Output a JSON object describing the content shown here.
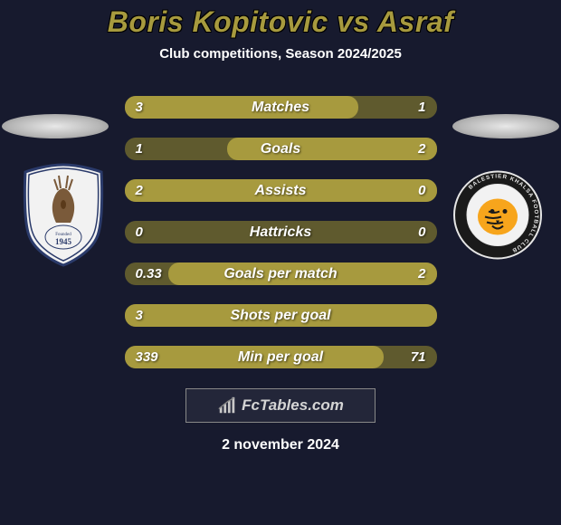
{
  "title": "Boris Kopitovic vs Asraf",
  "subtitle": "Club competitions, Season 2024/2025",
  "date": "2 november 2024",
  "watermark": "FcTables.com",
  "colors": {
    "background": "#171a2e",
    "accent": "#a79a3e",
    "bar_bg": "#5f5a2e",
    "text": "#ffffff"
  },
  "badge_left": {
    "year": "1945",
    "founded_text": "Founded"
  },
  "badge_right": {
    "outer_text": "BALESTIER KHALSA FOOTBALL CLUB"
  },
  "stats": [
    {
      "label": "Matches",
      "left_value": "3",
      "right_value": "1",
      "left_pct": 75,
      "right_pct": 0
    },
    {
      "label": "Goals",
      "left_value": "1",
      "right_value": "2",
      "left_pct": 0,
      "right_pct": 67
    },
    {
      "label": "Assists",
      "left_value": "2",
      "right_value": "0",
      "left_pct": 100,
      "right_pct": 0
    },
    {
      "label": "Hattricks",
      "left_value": "0",
      "right_value": "0",
      "left_pct": 0,
      "right_pct": 0
    },
    {
      "label": "Goals per match",
      "left_value": "0.33",
      "right_value": "2",
      "left_pct": 0,
      "right_pct": 86
    },
    {
      "label": "Shots per goal",
      "left_value": "3",
      "right_value": "",
      "left_pct": 100,
      "right_pct": 0
    },
    {
      "label": "Min per goal",
      "left_value": "339",
      "right_value": "71",
      "left_pct": 83,
      "right_pct": 0
    }
  ]
}
